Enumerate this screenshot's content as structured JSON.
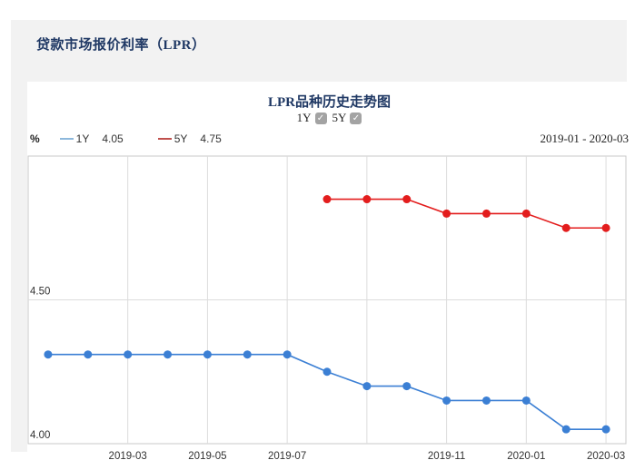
{
  "header": {
    "title": "贷款市场报价利率（LPR）"
  },
  "chart": {
    "title": "LPR品种历史走势图",
    "unit": "%",
    "range_label": "2019-01 - 2020-03",
    "toggles": [
      {
        "label": "1Y",
        "checked": true
      },
      {
        "label": "5Y",
        "checked": true
      }
    ],
    "legend": [
      {
        "name": "1Y",
        "latest_value": "4.05",
        "line_color": "#8db8dc"
      },
      {
        "name": "5Y",
        "latest_value": "4.75",
        "line_color": "#c0504d"
      }
    ]
  },
  "chart_data": {
    "type": "line",
    "title": "LPR品种历史走势图",
    "x": [
      "2019-01",
      "2019-02",
      "2019-03",
      "2019-04",
      "2019-05",
      "2019-06",
      "2019-07",
      "2019-08",
      "2019-09",
      "2019-10",
      "2019-11",
      "2019-12",
      "2020-01",
      "2020-02",
      "2020-03"
    ],
    "x_gridlines": [
      "2019-03",
      "2019-05",
      "2019-07",
      "2019-09",
      "2019-11",
      "2020-01",
      "2020-03"
    ],
    "x_tick_labels": [
      "2019-03",
      "2019-05",
      "2019-07",
      "2019-11",
      "2020-01",
      "2020-03"
    ],
    "series": [
      {
        "name": "1Y",
        "color": "#3b7fd4",
        "values": [
          4.31,
          4.31,
          4.31,
          4.31,
          4.31,
          4.31,
          4.31,
          4.25,
          4.2,
          4.2,
          4.15,
          4.15,
          4.15,
          4.05,
          4.05
        ]
      },
      {
        "name": "5Y",
        "color": "#e31d1d",
        "values": [
          null,
          null,
          null,
          null,
          null,
          null,
          null,
          4.85,
          4.85,
          4.85,
          4.8,
          4.8,
          4.8,
          4.75,
          4.75
        ]
      }
    ],
    "ylabel": "%",
    "ylim": [
      4.0,
      5.0
    ],
    "yticks": [
      {
        "value": 4.0,
        "label": "4.00"
      },
      {
        "value": 4.5,
        "label": "4.50"
      },
      {
        "value": 5.0,
        "label": ""
      }
    ],
    "grid": true,
    "legend_position": "top-left",
    "colors": {
      "grid_line": "#dcdcdc",
      "plot_border": "#c9c9c9"
    }
  }
}
